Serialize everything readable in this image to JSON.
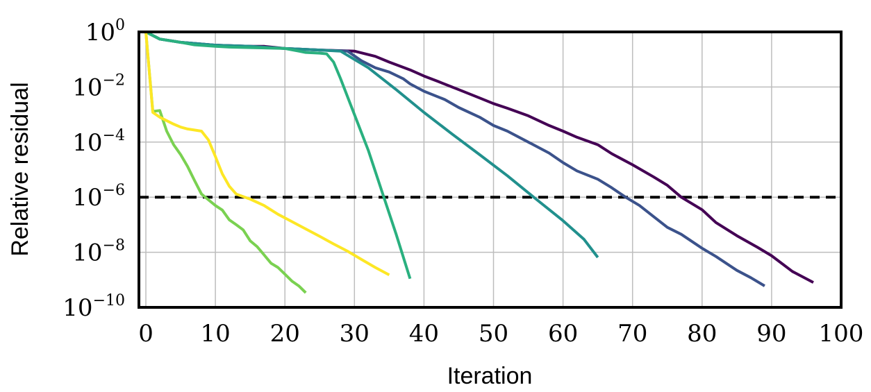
{
  "chart_data": {
    "type": "line",
    "title": "",
    "xlabel": "Iteration",
    "ylabel": "Relative residual",
    "xlim": [
      -1,
      100
    ],
    "ylim": [
      1e-10,
      1
    ],
    "yscale": "log",
    "grid": true,
    "x_ticks": [
      "0",
      "10",
      "20",
      "30",
      "40",
      "50",
      "60",
      "70",
      "80",
      "90",
      "100"
    ],
    "y_ticks": [
      {
        "base": "10",
        "exp": "0",
        "value": 1
      },
      {
        "base": "10",
        "exp": "−2",
        "value": 0.01
      },
      {
        "base": "10",
        "exp": "−4",
        "value": 0.0001
      },
      {
        "base": "10",
        "exp": "−6",
        "value": 1e-06
      },
      {
        "base": "10",
        "exp": "−8",
        "value": 1e-08
      },
      {
        "base": "10",
        "exp": "−10",
        "value": 1e-10
      }
    ],
    "reference_line": {
      "y": 1e-06,
      "style": "dashed",
      "color": "#000000"
    },
    "series": [
      {
        "color": "#440154",
        "points": [
          [
            0,
            1
          ],
          [
            2,
            0.55
          ],
          [
            5,
            0.42
          ],
          [
            10,
            0.33
          ],
          [
            15,
            0.3
          ],
          [
            17,
            0.3
          ],
          [
            20,
            0.25
          ],
          [
            25,
            0.22
          ],
          [
            30,
            0.2
          ],
          [
            33,
            0.13
          ],
          [
            35,
            0.08
          ],
          [
            38,
            0.042
          ],
          [
            40,
            0.025
          ],
          [
            42,
            0.016
          ],
          [
            45,
            0.008
          ],
          [
            48,
            0.004
          ],
          [
            50,
            0.0025
          ],
          [
            52,
            0.0017
          ],
          [
            55,
            0.0009
          ],
          [
            58,
            0.0004
          ],
          [
            60,
            0.00025
          ],
          [
            62,
            0.00015
          ],
          [
            65,
            8e-05
          ],
          [
            67,
            3.8e-05
          ],
          [
            70,
            1.5e-05
          ],
          [
            73,
            5.5e-06
          ],
          [
            75,
            2.7e-06
          ],
          [
            77,
            1e-06
          ],
          [
            80,
            3.5e-07
          ],
          [
            82,
            1.2e-07
          ],
          [
            85,
            4e-08
          ],
          [
            88,
            1.5e-08
          ],
          [
            90,
            7.5e-09
          ],
          [
            93,
            2e-09
          ],
          [
            96,
            8e-10
          ]
        ]
      },
      {
        "color": "#3b528b",
        "points": [
          [
            0,
            1
          ],
          [
            2,
            0.55
          ],
          [
            5,
            0.42
          ],
          [
            10,
            0.33
          ],
          [
            15,
            0.3
          ],
          [
            20,
            0.25
          ],
          [
            25,
            0.22
          ],
          [
            29,
            0.2
          ],
          [
            31,
            0.09
          ],
          [
            33,
            0.05
          ],
          [
            35,
            0.035
          ],
          [
            37,
            0.02
          ],
          [
            38,
            0.013
          ],
          [
            40,
            0.007
          ],
          [
            43,
            0.0035
          ],
          [
            45,
            0.0018
          ],
          [
            48,
            0.0008
          ],
          [
            50,
            0.0004
          ],
          [
            52,
            0.00025
          ],
          [
            55,
            0.0001
          ],
          [
            58,
            4e-05
          ],
          [
            60,
            1.8e-05
          ],
          [
            62,
            9e-06
          ],
          [
            65,
            4.5e-06
          ],
          [
            67,
            2.2e-06
          ],
          [
            69,
            1e-06
          ],
          [
            71,
            5e-07
          ],
          [
            73,
            2e-07
          ],
          [
            75,
            8e-08
          ],
          [
            77,
            4.5e-08
          ],
          [
            80,
            1.4e-08
          ],
          [
            82,
            7e-09
          ],
          [
            85,
            2.2e-09
          ],
          [
            87,
            1.2e-09
          ],
          [
            89,
            6e-10
          ]
        ]
      },
      {
        "color": "#21908d",
        "points": [
          [
            0,
            1
          ],
          [
            2,
            0.55
          ],
          [
            5,
            0.42
          ],
          [
            10,
            0.33
          ],
          [
            15,
            0.3
          ],
          [
            20,
            0.25
          ],
          [
            25,
            0.22
          ],
          [
            28,
            0.2
          ],
          [
            32,
            0.05
          ],
          [
            36,
            0.008
          ],
          [
            40,
            0.0012
          ],
          [
            44,
            0.0002
          ],
          [
            48,
            3.5e-05
          ],
          [
            52,
            6e-06
          ],
          [
            56,
            9e-07
          ],
          [
            60,
            1.4e-07
          ],
          [
            63,
            3e-08
          ],
          [
            65,
            6.5e-09
          ]
        ]
      },
      {
        "color": "#2ab07f",
        "points": [
          [
            0,
            1
          ],
          [
            2,
            0.55
          ],
          [
            5,
            0.42
          ],
          [
            7,
            0.34
          ],
          [
            10,
            0.3
          ],
          [
            12,
            0.28
          ],
          [
            15,
            0.27
          ],
          [
            20,
            0.25
          ],
          [
            22,
            0.2
          ],
          [
            23,
            0.18
          ],
          [
            25,
            0.17
          ],
          [
            26,
            0.16
          ],
          [
            27,
            0.08
          ],
          [
            28,
            0.02
          ],
          [
            30,
            0.001
          ],
          [
            32,
            5e-05
          ],
          [
            34,
            1.5e-06
          ],
          [
            36,
            4.5e-08
          ],
          [
            38,
            1.1e-09
          ]
        ]
      },
      {
        "color": "#7ad151",
        "points": [
          [
            0,
            1
          ],
          [
            1,
            0.0013
          ],
          [
            2,
            0.0014
          ],
          [
            3,
            0.00025
          ],
          [
            4,
            8e-05
          ],
          [
            5,
            3.5e-05
          ],
          [
            6,
            1.3e-05
          ],
          [
            7,
            4e-06
          ],
          [
            8,
            1.3e-06
          ],
          [
            9,
            8e-07
          ],
          [
            10,
            5e-07
          ],
          [
            11,
            3.4e-07
          ],
          [
            12,
            1.5e-07
          ],
          [
            13,
            1e-07
          ],
          [
            14,
            6.5e-08
          ],
          [
            15,
            2.6e-08
          ],
          [
            16,
            1.6e-08
          ],
          [
            17,
            8e-09
          ],
          [
            18,
            4e-09
          ],
          [
            19,
            2.8e-09
          ],
          [
            20,
            1.6e-09
          ],
          [
            21,
            9e-10
          ],
          [
            22,
            6e-10
          ],
          [
            23,
            3.4e-10
          ]
        ]
      },
      {
        "color": "#fde725",
        "points": [
          [
            0,
            1
          ],
          [
            1,
            0.0012
          ],
          [
            2,
            0.0008
          ],
          [
            3,
            0.0006
          ],
          [
            4,
            0.00045
          ],
          [
            5,
            0.00035
          ],
          [
            6,
            0.0003
          ],
          [
            8,
            0.00025
          ],
          [
            9,
            0.00012
          ],
          [
            10,
            3e-05
          ],
          [
            11,
            7e-06
          ],
          [
            12,
            2.5e-06
          ],
          [
            13,
            1.3e-06
          ],
          [
            15,
            8.5e-07
          ],
          [
            17,
            5e-07
          ],
          [
            19,
            2.4e-07
          ],
          [
            21,
            1.3e-07
          ],
          [
            23,
            7e-08
          ],
          [
            25,
            3.8e-08
          ],
          [
            27,
            2e-08
          ],
          [
            29,
            1.1e-08
          ],
          [
            31,
            5.5e-09
          ],
          [
            33,
            2.8e-09
          ],
          [
            35,
            1.5e-09
          ]
        ]
      }
    ]
  }
}
